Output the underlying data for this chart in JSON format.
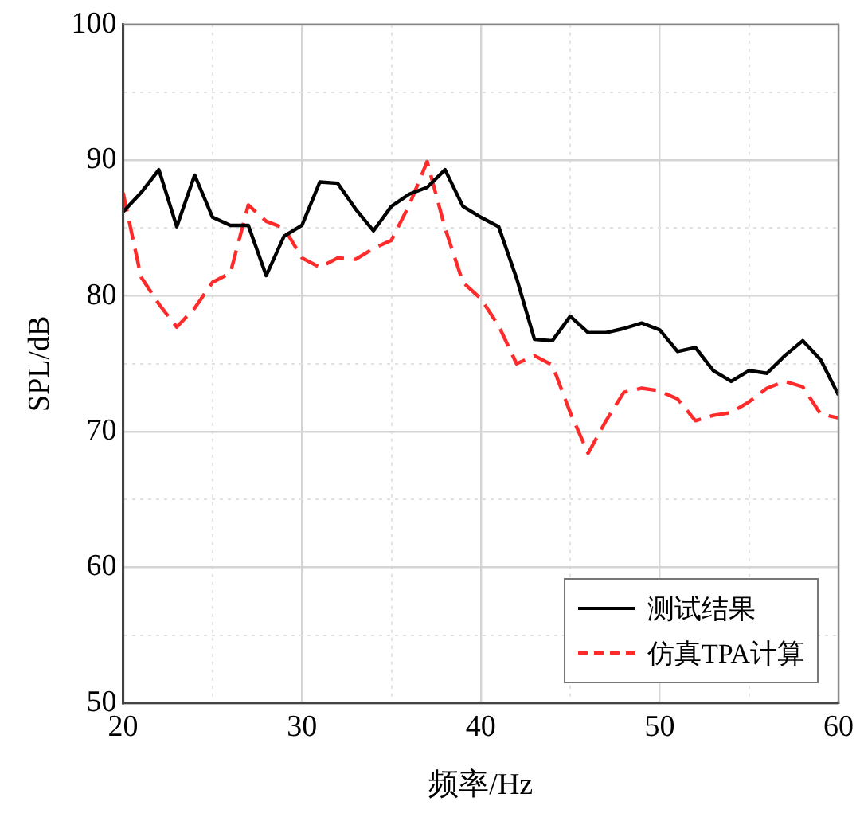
{
  "chart_data": {
    "type": "line",
    "xlabel": "频率/Hz",
    "ylabel": "SPL/dB",
    "x": [
      20,
      21,
      22,
      23,
      24,
      25,
      26,
      27,
      28,
      29,
      30,
      31,
      32,
      33,
      34,
      35,
      36,
      37,
      38,
      39,
      40,
      41,
      42,
      43,
      44,
      45,
      46,
      47,
      48,
      49,
      50,
      51,
      52,
      53,
      54,
      55,
      56,
      57,
      58,
      59,
      60
    ],
    "series": [
      {
        "name": "测试结果",
        "color": "#000000",
        "line_style": "solid",
        "values": [
          86.2,
          87.6,
          89.3,
          85.1,
          88.9,
          85.8,
          85.2,
          85.2,
          81.5,
          84.4,
          85.2,
          88.4,
          88.3,
          86.4,
          84.8,
          86.6,
          87.5,
          88.0,
          89.3,
          86.6,
          85.8,
          85.1,
          81.3,
          76.8,
          76.7,
          78.5,
          77.3,
          77.3,
          77.6,
          78.0,
          77.5,
          75.9,
          76.2,
          74.5,
          73.7,
          74.5,
          74.3,
          75.6,
          76.7,
          75.3,
          72.7
        ]
      },
      {
        "name": "仿真TPA计算",
        "color": "#ff2a2a",
        "line_style": "dashed",
        "values": [
          87.6,
          81.4,
          79.4,
          77.7,
          79.1,
          81.0,
          81.7,
          86.7,
          85.5,
          85.0,
          82.8,
          82.1,
          82.8,
          82.7,
          83.5,
          84.1,
          86.7,
          89.9,
          85.0,
          81.0,
          79.8,
          77.8,
          75.0,
          75.6,
          74.9,
          71.4,
          68.4,
          70.8,
          72.9,
          73.2,
          73.0,
          72.4,
          70.8,
          71.2,
          71.4,
          72.2,
          73.2,
          73.7,
          73.3,
          71.3,
          71.0
        ]
      }
    ],
    "xlim": [
      20,
      60
    ],
    "xticks": [
      20,
      {
        "value": 25,
        "label": null
      },
      30,
      {
        "value": 35,
        "label": null
      },
      40,
      {
        "value": 45,
        "label": null
      },
      50,
      {
        "value": 55,
        "label": null
      },
      60
    ],
    "ylim": [
      50,
      100
    ],
    "yticks": [
      50,
      {
        "value": 55,
        "label": null
      },
      60,
      {
        "value": 65,
        "label": null
      },
      70,
      {
        "value": 75,
        "label": null
      },
      80,
      {
        "value": 85,
        "label": null
      },
      90,
      {
        "value": 95,
        "label": null
      },
      100
    ],
    "grid": true,
    "legend": "bottom right",
    "marker": "none"
  }
}
